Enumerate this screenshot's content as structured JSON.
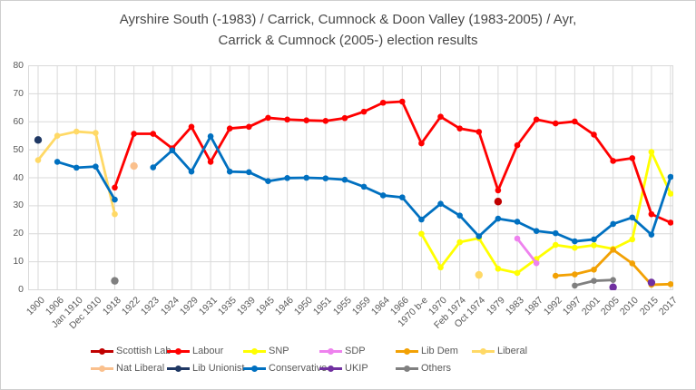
{
  "chart_data": {
    "type": "line",
    "title": "Ayrshire South (-1983) / Carrick, Cumnock & Doon Valley (1983-2005) / Ayr, Carrick & Cumnock (2005-) election results",
    "title_lines": [
      "Ayrshire South (-1983) / Carrick, Cumnock & Doon Valley (1983-2005) / Ayr,",
      "Carrick & Cumnock (2005-) election results"
    ],
    "ylabel": "",
    "xlabel": "",
    "ylim": [
      0,
      80
    ],
    "yticks": [
      0,
      10,
      20,
      30,
      40,
      50,
      60,
      70,
      80
    ],
    "grid": true,
    "legend_position": "bottom",
    "categories": [
      "1900",
      "1906",
      "Jan 1910",
      "Dec 1910",
      "1918",
      "1922",
      "1923",
      "1924",
      "1929",
      "1931",
      "1935",
      "1939",
      "1945",
      "1946",
      "1950",
      "1951",
      "1955",
      "1959",
      "1964",
      "1966",
      "1970 b-e",
      "1970",
      "Feb 1974",
      "Oct 1974",
      "1979",
      "1983",
      "1987",
      "1992",
      "1997",
      "2001",
      "2005",
      "2010",
      "2015",
      "2017"
    ],
    "series": [
      {
        "name": "Scottish Lab",
        "color": "#C00000",
        "segments": [
          [
            [
              "1979",
              31.5
            ]
          ]
        ]
      },
      {
        "name": "Labour",
        "color": "#FF0000",
        "segments": [
          [
            [
              "1918",
              36.5
            ],
            [
              "1922",
              55.7
            ],
            [
              "1923",
              55.7
            ],
            [
              "1924",
              50.5
            ],
            [
              "1929",
              58.2
            ],
            [
              "1931",
              45.7
            ],
            [
              "1935",
              57.6
            ],
            [
              "1939",
              58.2
            ],
            [
              "1945",
              61.4
            ],
            [
              "1946",
              60.8
            ],
            [
              "1950",
              60.5
            ],
            [
              "1951",
              60.3
            ],
            [
              "1955",
              61.3
            ],
            [
              "1959",
              63.6
            ],
            [
              "1964",
              66.8
            ],
            [
              "1966",
              67.2
            ],
            [
              "1970 b-e",
              52.3
            ],
            [
              "1970",
              61.8
            ],
            [
              "Feb 1974",
              57.6
            ],
            [
              "Oct 1974",
              56.4
            ],
            [
              "1979",
              35.5
            ],
            [
              "1983",
              51.6
            ],
            [
              "1987",
              60.8
            ],
            [
              "1992",
              59.4
            ],
            [
              "1997",
              60.1
            ],
            [
              "2001",
              55.4
            ],
            [
              "2005",
              46
            ],
            [
              "2010",
              47
            ],
            [
              "2015",
              27
            ],
            [
              "2017",
              24
            ]
          ]
        ]
      },
      {
        "name": "SNP",
        "color": "#FFFF00",
        "segments": [
          [
            [
              "1970 b-e",
              20
            ],
            [
              "1970",
              8
            ],
            [
              "Feb 1974",
              17
            ],
            [
              "Oct 1974",
              18.4
            ],
            [
              "1979",
              7.5
            ],
            [
              "1983",
              6
            ],
            [
              "1987",
              11
            ],
            [
              "1992",
              16
            ],
            [
              "1997",
              15
            ],
            [
              "2001",
              15.9
            ],
            [
              "2005",
              14.6
            ],
            [
              "2010",
              18
            ],
            [
              "2015",
              49.2
            ],
            [
              "2017",
              34.3
            ]
          ]
        ]
      },
      {
        "name": "SDP",
        "color": "#EE82EE",
        "segments": [
          [
            [
              "1983",
              18.3
            ],
            [
              "1987",
              9.5
            ]
          ]
        ]
      },
      {
        "name": "Lib Dem",
        "color": "#F2A104",
        "segments": [
          [
            [
              "1992",
              5
            ],
            [
              "1997",
              5.5
            ],
            [
              "2001",
              7.2
            ],
            [
              "2005",
              14.3
            ],
            [
              "2010",
              9.4
            ],
            [
              "2015",
              1.8
            ],
            [
              "2017",
              2
            ]
          ]
        ]
      },
      {
        "name": "Liberal",
        "color": "#FFD966",
        "segments": [
          [
            [
              "1900",
              46.3
            ],
            [
              "1906",
              55
            ],
            [
              "Jan 1910",
              56.5
            ],
            [
              "Dec 1910",
              56
            ],
            [
              "1918",
              27
            ]
          ],
          [
            [
              "Oct 1974",
              5.3
            ]
          ]
        ]
      },
      {
        "name": "Nat Liberal",
        "color": "#FAC08D",
        "segments": [
          [
            [
              "1922",
              44.2
            ]
          ]
        ]
      },
      {
        "name": "Lib Unionist",
        "color": "#1F3864",
        "segments": [
          [
            [
              "1900",
              53.5
            ]
          ]
        ]
      },
      {
        "name": "Conservative",
        "color": "#0070C0",
        "segments": [
          [
            [
              "1906",
              45.7
            ],
            [
              "Jan 1910",
              43.6
            ],
            [
              "Dec 1910",
              44
            ],
            [
              "1918",
              32.2
            ]
          ],
          [
            [
              "1923",
              43.7
            ],
            [
              "1924",
              49.8
            ],
            [
              "1929",
              42.2
            ],
            [
              "1931",
              54.8
            ],
            [
              "1935",
              42.2
            ],
            [
              "1939",
              42
            ],
            [
              "1945",
              38.8
            ],
            [
              "1946",
              39.9
            ],
            [
              "1950",
              40
            ],
            [
              "1951",
              39.8
            ],
            [
              "1955",
              39.3
            ],
            [
              "1959",
              36.8
            ],
            [
              "1964",
              33.7
            ],
            [
              "1966",
              33
            ],
            [
              "1970 b-e",
              25.1
            ],
            [
              "1970",
              30.7
            ],
            [
              "Feb 1974",
              26.5
            ],
            [
              "Oct 1974",
              19.1
            ],
            [
              "1979",
              25.4
            ],
            [
              "1983",
              24.3
            ],
            [
              "1987",
              21
            ],
            [
              "1992",
              20.2
            ],
            [
              "1997",
              17.3
            ],
            [
              "2001",
              18
            ],
            [
              "2005",
              23.5
            ],
            [
              "2010",
              25.8
            ],
            [
              "2015",
              19.7
            ],
            [
              "2017",
              40.3
            ]
          ]
        ]
      },
      {
        "name": "UKIP",
        "color": "#7030A0",
        "segments": [
          [
            [
              "2005",
              0.9
            ]
          ],
          [
            [
              "2015",
              2.6
            ]
          ]
        ]
      },
      {
        "name": "Others",
        "color": "#808080",
        "segments": [
          [
            [
              "1918",
              3.2
            ]
          ],
          [
            [
              "1997",
              1.5
            ],
            [
              "2001",
              3.2
            ],
            [
              "2005",
              3.5
            ]
          ]
        ]
      }
    ],
    "legend_rows": [
      [
        "Scottish Lab",
        "Labour",
        "SNP",
        "SDP",
        "Lib Dem",
        "Liberal"
      ],
      [
        "Nat Liberal",
        "Lib Unionist",
        "Conservative",
        "UKIP",
        "Others"
      ]
    ],
    "draw_order": [
      "Liberal",
      "Nat Liberal",
      "Lib Unionist",
      "Others",
      "SNP",
      "SDP",
      "Lib Dem",
      "UKIP",
      "Labour",
      "Conservative",
      "Scottish Lab"
    ]
  },
  "styles": {
    "grid_color": "#D9D9D9",
    "axis_text_color": "#595959",
    "title_color": "#474747",
    "legend_text_color": "#595959"
  }
}
